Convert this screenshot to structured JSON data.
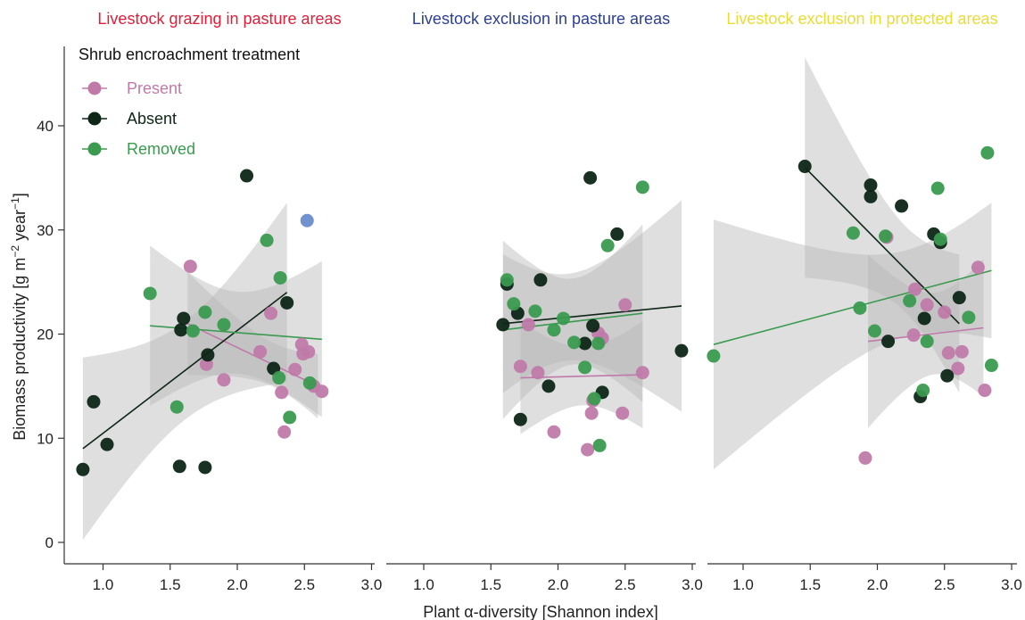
{
  "chart_data": {
    "type": "scatter",
    "xlabel": "Plant α-diversity [Shannon index]",
    "ylabel": "Biomass productivity [g m",
    "ylabel_sup1": "−2",
    "ylabel_mid": " year",
    "ylabel_sup2": "−1",
    "ylabel_end": "]",
    "ylim": [
      -2,
      48
    ],
    "yticks": [
      "0",
      "10",
      "20",
      "30",
      "40"
    ],
    "xticks": [
      "1.0",
      "1.5",
      "2.0",
      "2.5",
      "3.0"
    ],
    "colors": {
      "Present": "#c07aaa",
      "Absent": "#0d2616",
      "Removed": "#3a9a4f",
      "outlier": "#6a8ccc",
      "band": "#b8b8b8"
    },
    "legend": {
      "title": "Shrub encroachment treatment",
      "placement": "top-left",
      "entries": [
        "Present",
        "Absent",
        "Removed"
      ]
    },
    "panels": [
      {
        "title": "Livestock grazing in pasture areas",
        "title_color": "#e0203a",
        "xlim": [
          0.8,
          3.05
        ],
        "series": [
          {
            "name": "Present",
            "points": [
              [
                1.65,
                26.5
              ],
              [
                1.77,
                17.1
              ],
              [
                1.9,
                15.6
              ],
              [
                2.17,
                18.3
              ],
              [
                2.25,
                22.0
              ],
              [
                2.33,
                14.4
              ],
              [
                2.35,
                10.6
              ],
              [
                2.43,
                16.6
              ],
              [
                2.48,
                19.0
              ],
              [
                2.49,
                18.1
              ],
              [
                2.53,
                18.3
              ],
              [
                2.57,
                15.0
              ],
              [
                2.63,
                14.5
              ]
            ],
            "fit": [
              [
                1.63,
                21.0
              ],
              [
                2.6,
                15.0
              ]
            ]
          },
          {
            "name": "Absent",
            "points": [
              [
                0.85,
                7.0
              ],
              [
                0.93,
                13.5
              ],
              [
                1.03,
                9.4
              ],
              [
                1.57,
                7.3
              ],
              [
                1.58,
                20.4
              ],
              [
                1.6,
                21.5
              ],
              [
                1.76,
                7.2
              ],
              [
                1.78,
                18.0
              ],
              [
                2.07,
                35.2
              ],
              [
                2.27,
                16.7
              ],
              [
                2.37,
                23.0
              ]
            ],
            "fit": [
              [
                0.85,
                9.0
              ],
              [
                2.37,
                24.0
              ]
            ]
          },
          {
            "name": "Removed",
            "points": [
              [
                1.35,
                23.9
              ],
              [
                1.55,
                13.0
              ],
              [
                1.67,
                20.3
              ],
              [
                1.76,
                22.1
              ],
              [
                1.9,
                20.9
              ],
              [
                2.22,
                29.0
              ],
              [
                2.31,
                15.8
              ],
              [
                2.32,
                25.4
              ],
              [
                2.39,
                12.0
              ],
              [
                2.54,
                15.3
              ]
            ],
            "fit": [
              [
                1.35,
                20.8
              ],
              [
                2.63,
                19.5
              ]
            ]
          },
          {
            "name": "",
            "points": [
              [
                2.52,
                30.9
              ]
            ]
          }
        ]
      },
      {
        "title": "Livestock exclusion in pasture areas",
        "title_color": "#2c3f96",
        "xlim": [
          0.8,
          3.05
        ],
        "series": [
          {
            "name": "Present",
            "points": [
              [
                1.72,
                16.9
              ],
              [
                1.78,
                20.9
              ],
              [
                1.85,
                16.3
              ],
              [
                1.97,
                10.6
              ],
              [
                2.22,
                8.9
              ],
              [
                2.25,
                12.4
              ],
              [
                2.26,
                13.6
              ],
              [
                2.3,
                20.1
              ],
              [
                2.33,
                19.6
              ],
              [
                2.48,
                12.4
              ],
              [
                2.5,
                22.8
              ],
              [
                2.63,
                16.3
              ]
            ],
            "fit": [
              [
                1.72,
                15.8
              ],
              [
                2.63,
                16.1
              ]
            ]
          },
          {
            "name": "Absent",
            "points": [
              [
                1.59,
                20.9
              ],
              [
                1.62,
                24.8
              ],
              [
                1.7,
                22.0
              ],
              [
                1.72,
                11.8
              ],
              [
                1.87,
                25.2
              ],
              [
                1.93,
                15.0
              ],
              [
                2.2,
                19.1
              ],
              [
                2.24,
                35.0
              ],
              [
                2.26,
                20.8
              ],
              [
                2.33,
                14.4
              ],
              [
                2.44,
                29.6
              ],
              [
                2.92,
                18.4
              ]
            ],
            "fit": [
              [
                1.59,
                21.0
              ],
              [
                2.92,
                22.7
              ]
            ]
          },
          {
            "name": "Removed",
            "points": [
              [
                1.62,
                25.2
              ],
              [
                1.67,
                22.9
              ],
              [
                1.83,
                22.2
              ],
              [
                1.97,
                20.4
              ],
              [
                2.04,
                21.5
              ],
              [
                2.12,
                19.2
              ],
              [
                2.2,
                16.8
              ],
              [
                2.27,
                13.8
              ],
              [
                2.3,
                19.1
              ],
              [
                2.31,
                9.3
              ],
              [
                2.37,
                28.5
              ],
              [
                2.63,
                34.1
              ]
            ],
            "fit": [
              [
                1.59,
                20.4
              ],
              [
                2.63,
                22.0
              ]
            ]
          }
        ]
      },
      {
        "title": "Livestock exclusion in protected areas",
        "title_color": "#eadc30",
        "xlim": [
          0.8,
          3.05
        ],
        "series": [
          {
            "name": "Present",
            "points": [
              [
                1.91,
                8.1
              ],
              [
                2.07,
                29.3
              ],
              [
                2.27,
                19.9
              ],
              [
                2.28,
                24.3
              ],
              [
                2.37,
                22.8
              ],
              [
                2.5,
                22.1
              ],
              [
                2.53,
                18.2
              ],
              [
                2.6,
                16.7
              ],
              [
                2.63,
                18.3
              ],
              [
                2.75,
                26.4
              ],
              [
                2.8,
                14.6
              ]
            ],
            "fit": [
              [
                1.93,
                19.3
              ],
              [
                2.79,
                20.6
              ]
            ]
          },
          {
            "name": "Absent",
            "points": [
              [
                1.46,
                36.1
              ],
              [
                1.95,
                34.3
              ],
              [
                1.95,
                33.2
              ],
              [
                2.08,
                19.3
              ],
              [
                2.18,
                32.3
              ],
              [
                2.32,
                14.0
              ],
              [
                2.35,
                21.5
              ],
              [
                2.42,
                29.6
              ],
              [
                2.47,
                28.8
              ],
              [
                2.52,
                16.0
              ],
              [
                2.61,
                23.5
              ]
            ],
            "fit": [
              [
                1.46,
                36.0
              ],
              [
                2.61,
                21.0
              ]
            ]
          },
          {
            "name": "Removed",
            "points": [
              [
                0.78,
                17.9
              ],
              [
                1.82,
                29.7
              ],
              [
                1.87,
                22.5
              ],
              [
                1.98,
                20.3
              ],
              [
                2.06,
                29.4
              ],
              [
                2.24,
                23.2
              ],
              [
                2.34,
                14.6
              ],
              [
                2.37,
                19.3
              ],
              [
                2.45,
                34.0
              ],
              [
                2.47,
                29.1
              ],
              [
                2.68,
                21.6
              ],
              [
                2.82,
                37.4
              ],
              [
                2.85,
                17.0
              ]
            ],
            "fit": [
              [
                0.78,
                19.0
              ],
              [
                2.85,
                26.1
              ]
            ]
          }
        ]
      }
    ]
  }
}
